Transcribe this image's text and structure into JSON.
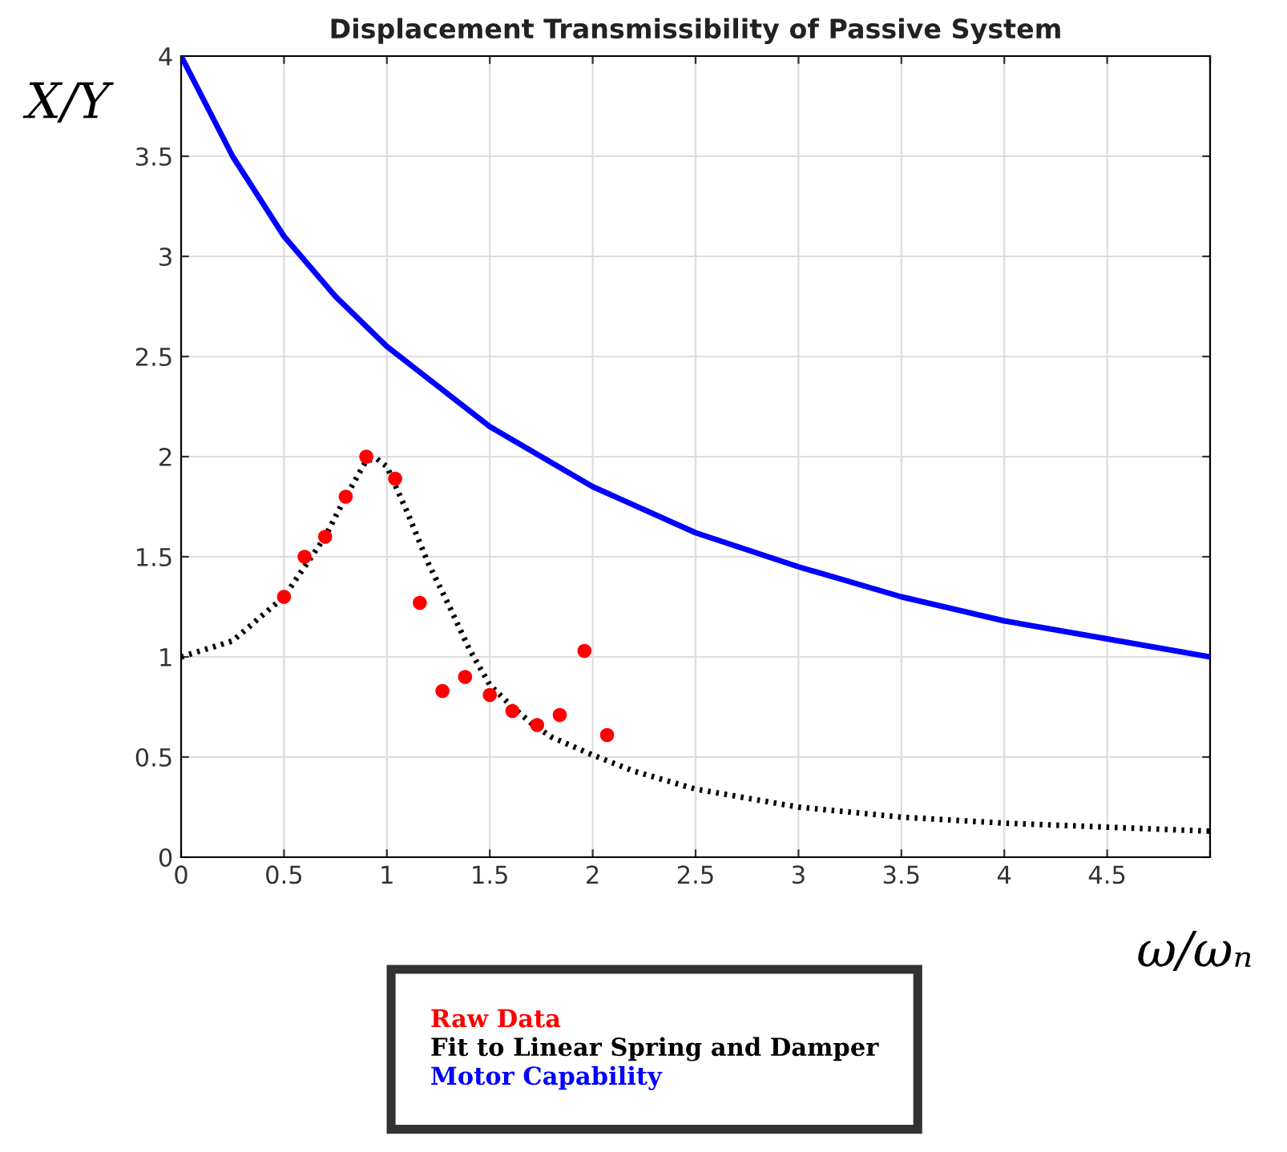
{
  "chart_data": {
    "type": "scatter",
    "title": "Displacement Transmissibility of Passive System",
    "xlabel": "ω/ωₙ",
    "ylabel": "X/Y",
    "xlim": [
      0,
      5
    ],
    "ylim": [
      0,
      4
    ],
    "xticks": [
      0,
      0.5,
      1,
      1.5,
      2,
      2.5,
      3,
      3.5,
      4,
      4.5,
      {
        "value": 5,
        "label": null
      }
    ],
    "yticks": [
      0,
      0.5,
      1,
      1.5,
      2,
      2.5,
      3,
      3.5,
      4
    ],
    "grid": true,
    "legend": "bottom",
    "series": [
      {
        "name": "Raw Data",
        "color": "#ff0000",
        "marker": "circle",
        "x": [
          0.5,
          0.6,
          0.7,
          0.8,
          0.9,
          1.04,
          1.16,
          1.27,
          1.38,
          1.5,
          1.61,
          1.73,
          1.84,
          1.96,
          2.07
        ],
        "values": [
          1.3,
          1.5,
          1.6,
          1.8,
          2.0,
          1.89,
          1.27,
          0.83,
          0.9,
          0.81,
          0.73,
          0.66,
          0.71,
          1.03,
          0.61
        ]
      },
      {
        "name": "Fit to Linear Spring and Damper",
        "type": "line",
        "color": "#000000",
        "line_style": "dotted",
        "x": [
          0,
          0.25,
          0.5,
          0.6,
          0.7,
          0.8,
          0.9,
          0.95,
          1.0,
          1.1,
          1.2,
          1.3,
          1.4,
          1.5,
          1.6,
          1.7,
          1.8,
          2.0,
          2.2,
          2.5,
          3.0,
          3.5,
          4.0,
          4.5,
          5.0
        ],
        "values": [
          1.0,
          1.08,
          1.3,
          1.45,
          1.6,
          1.8,
          1.98,
          1.99,
          1.95,
          1.72,
          1.47,
          1.26,
          1.04,
          0.86,
          0.76,
          0.67,
          0.6,
          0.51,
          0.43,
          0.34,
          0.25,
          0.2,
          0.17,
          0.15,
          0.13
        ]
      },
      {
        "name": "Motor Capability",
        "type": "line",
        "color": "#0000ff",
        "line_style": "solid",
        "x": [
          0,
          0.25,
          0.5,
          0.75,
          1.0,
          1.5,
          2.0,
          2.5,
          3.0,
          3.5,
          4.0,
          4.5,
          5.0
        ],
        "values": [
          4.0,
          3.5,
          3.1,
          2.8,
          2.55,
          2.15,
          1.85,
          1.62,
          1.45,
          1.3,
          1.18,
          1.09,
          1.0
        ]
      }
    ]
  }
}
